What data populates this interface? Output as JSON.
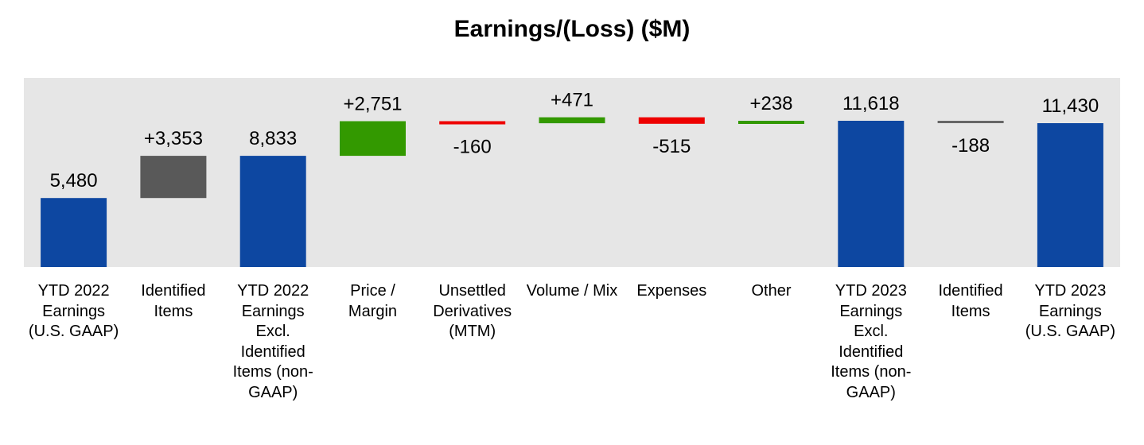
{
  "chart_data": {
    "type": "bar",
    "subtype": "waterfall",
    "title": "Earnings/(Loss) ($M)",
    "xlabel": "",
    "ylabel": "",
    "ylim": [
      0,
      12000
    ],
    "grid": false,
    "legend": "none",
    "colors": {
      "total": "#0D47A1",
      "identified": "#595959",
      "increase": "#339900",
      "decrease": "#EE0000",
      "neutral": "#666666",
      "plot_background": "#E6E6E6"
    },
    "bars": [
      {
        "category": "YTD 2022 Earnings (U.S. GAAP)",
        "kind": "total",
        "value": 5480,
        "label": "5,480"
      },
      {
        "category": "Identified Items",
        "kind": "identified",
        "value": 3353,
        "label": "+3,353"
      },
      {
        "category": "YTD 2022 Earnings Excl. Identified Items (non-GAAP)",
        "kind": "total",
        "value": 8833,
        "label": "8,833"
      },
      {
        "category": "Price / Margin",
        "kind": "increase",
        "value": 2751,
        "label": "+2,751"
      },
      {
        "category": "Unsettled Derivatives (MTM)",
        "kind": "decrease",
        "value": -160,
        "label": "-160"
      },
      {
        "category": "Volume / Mix",
        "kind": "increase",
        "value": 471,
        "label": "+471"
      },
      {
        "category": "Expenses",
        "kind": "decrease",
        "value": -515,
        "label": "-515"
      },
      {
        "category": "Other",
        "kind": "increase",
        "value": 238,
        "label": "+238"
      },
      {
        "category": "YTD 2023 Earnings Excl. Identified Items (non-GAAP)",
        "kind": "total",
        "value": 11618,
        "label": "11,618"
      },
      {
        "category": "Identified Items",
        "kind": "neutral",
        "value": -188,
        "label": "-188"
      },
      {
        "category": "YTD 2023 Earnings (U.S. GAAP)",
        "kind": "total",
        "value": 11430,
        "label": "11,430"
      }
    ]
  }
}
